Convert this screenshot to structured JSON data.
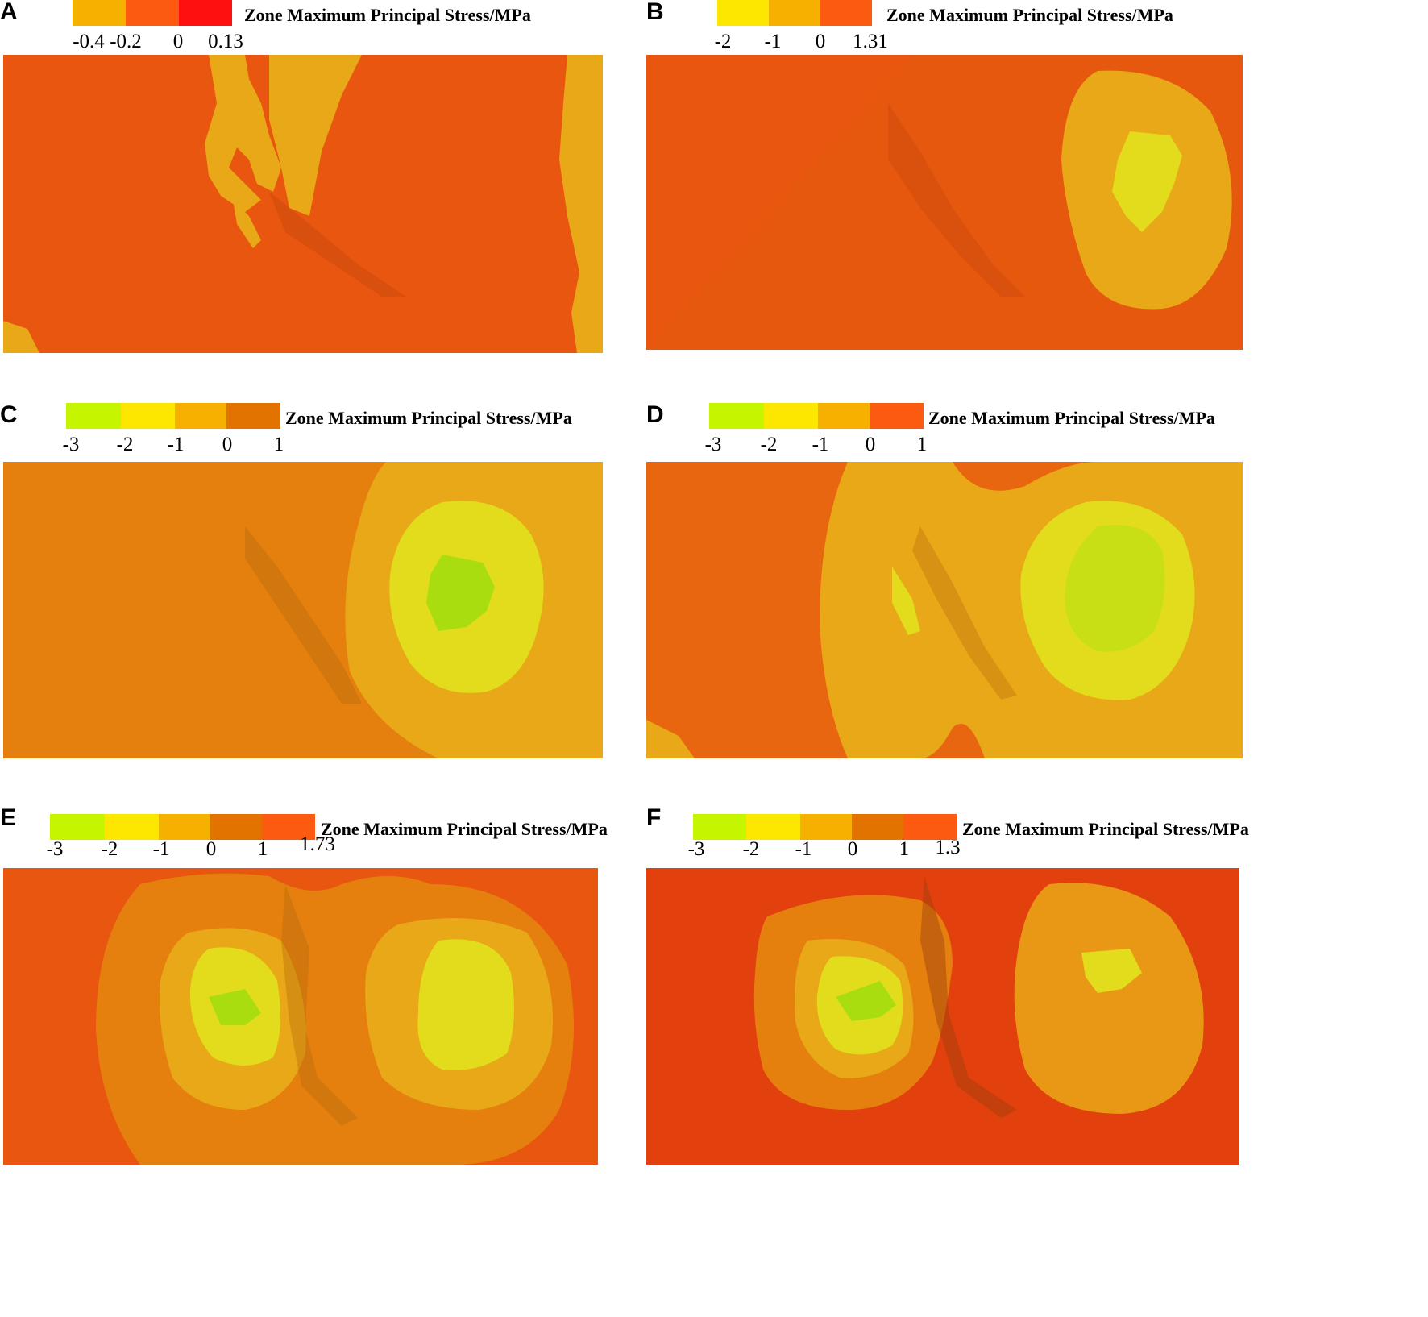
{
  "legend_title": "Zone Maximum Principal Stress/MPa",
  "colors": {
    "lime": "#c6f500",
    "yellow": "#fde600",
    "amber": "#f5b000",
    "dark_orange": "#e27300",
    "orange": "#fb5a10",
    "red": "#ff1010",
    "zone_orange": "#e8560f",
    "zone_amber": "#e9a817",
    "zone_yellow": "#e2dc1c",
    "zone_lime": "#a9dd10",
    "zone_deeporange": "#e5800f"
  },
  "panels": [
    {
      "id": "A",
      "letter": "A",
      "ticks": [
        "-0.4",
        "-0.2",
        "0",
        "0.13"
      ],
      "swatches": [
        "amber",
        "orange",
        "red"
      ]
    },
    {
      "id": "B",
      "letter": "B",
      "ticks": [
        "-2",
        "-1",
        "0",
        "1.31"
      ],
      "swatches": [
        "yellow",
        "amber",
        "orange"
      ]
    },
    {
      "id": "C",
      "letter": "C",
      "ticks": [
        "-3",
        "-2",
        "-1",
        "0",
        "1"
      ],
      "swatches": [
        "lime",
        "yellow",
        "amber",
        "dark_orange"
      ]
    },
    {
      "id": "D",
      "letter": "D",
      "ticks": [
        "-3",
        "-2",
        "-1",
        "0",
        "1"
      ],
      "swatches": [
        "lime",
        "yellow",
        "amber",
        "orange"
      ]
    },
    {
      "id": "E",
      "letter": "E",
      "ticks": [
        "-3",
        "-2",
        "-1",
        "0",
        "1",
        "1.73"
      ],
      "swatches": [
        "lime",
        "yellow",
        "amber",
        "dark_orange",
        "orange"
      ]
    },
    {
      "id": "F",
      "letter": "F",
      "ticks": [
        "-3",
        "-2",
        "-1",
        "0",
        "1",
        "1.3"
      ],
      "swatches": [
        "lime",
        "yellow",
        "amber",
        "dark_orange",
        "orange"
      ]
    }
  ]
}
